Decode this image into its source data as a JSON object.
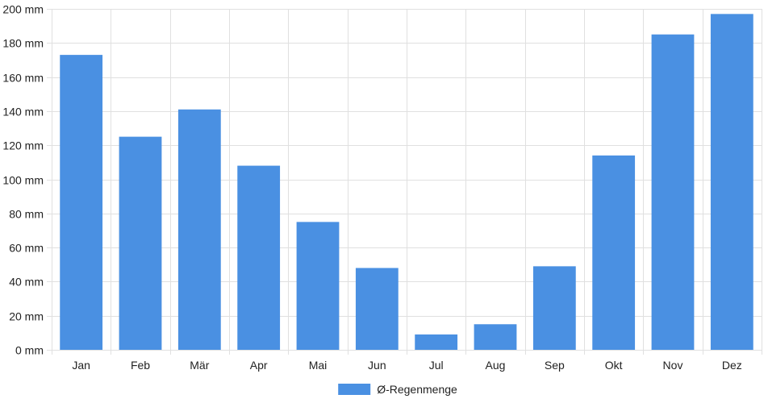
{
  "chart_data": {
    "type": "bar",
    "categories": [
      "Jan",
      "Feb",
      "Mär",
      "Apr",
      "Mai",
      "Jun",
      "Jul",
      "Aug",
      "Sep",
      "Okt",
      "Nov",
      "Dez"
    ],
    "series": [
      {
        "name": "Ø-Regenmenge",
        "color": "#4a90e2",
        "values": [
          173,
          125,
          141,
          108,
          75,
          48,
          9,
          15,
          49,
          114,
          185,
          197
        ]
      }
    ],
    "y_unit": "mm",
    "ylim": [
      0,
      200
    ],
    "y_ticks": [
      0,
      20,
      40,
      60,
      80,
      100,
      120,
      140,
      160,
      180,
      200
    ],
    "grid": true,
    "legend_position": "bottom-center"
  }
}
